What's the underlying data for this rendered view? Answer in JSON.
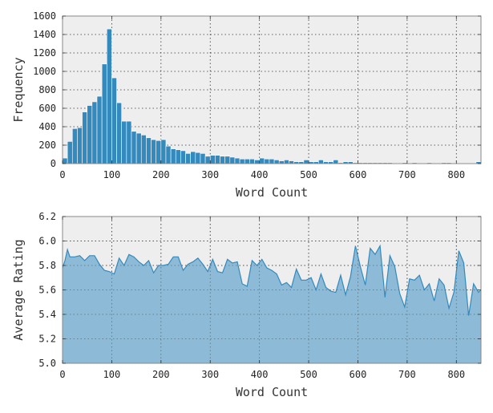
{
  "colors": {
    "bar": "#348ABD",
    "line": "#348ABD",
    "area": "#8DBAD6",
    "plot_bg": "#EEEEEE"
  },
  "chart_data": [
    {
      "type": "bar",
      "xlabel": "Word Count",
      "ylabel": "Frequency",
      "xlim": [
        0,
        850
      ],
      "ylim": [
        0,
        1600
      ],
      "xticks": [
        0,
        100,
        200,
        300,
        400,
        500,
        600,
        700,
        800
      ],
      "yticks": [
        0,
        200,
        400,
        600,
        800,
        1000,
        1200,
        1400,
        1600
      ],
      "grid": true,
      "bin_width": 10,
      "x": [
        5,
        15,
        25,
        35,
        45,
        55,
        65,
        75,
        85,
        95,
        105,
        115,
        125,
        135,
        145,
        155,
        165,
        175,
        185,
        195,
        205,
        215,
        225,
        235,
        245,
        255,
        265,
        275,
        285,
        295,
        305,
        315,
        325,
        335,
        345,
        355,
        365,
        375,
        385,
        395,
        405,
        415,
        425,
        435,
        445,
        455,
        465,
        475,
        485,
        495,
        505,
        515,
        525,
        535,
        545,
        555,
        565,
        575,
        585,
        595,
        605,
        615,
        625,
        635,
        645,
        655,
        665,
        675,
        685,
        695,
        705,
        715,
        725,
        735,
        745,
        755,
        765,
        775,
        785,
        795,
        805,
        815,
        825,
        835,
        845
      ],
      "values": [
        60,
        240,
        380,
        390,
        560,
        630,
        670,
        730,
        1080,
        1460,
        930,
        660,
        460,
        460,
        350,
        330,
        310,
        280,
        260,
        250,
        260,
        190,
        160,
        150,
        140,
        110,
        130,
        120,
        110,
        80,
        90,
        90,
        80,
        80,
        70,
        60,
        50,
        50,
        50,
        40,
        60,
        50,
        50,
        40,
        30,
        40,
        30,
        20,
        20,
        40,
        20,
        20,
        40,
        20,
        20,
        40,
        10,
        20,
        20,
        10,
        10,
        10,
        10,
        10,
        10,
        10,
        10,
        5,
        5,
        10,
        5,
        10,
        5,
        5,
        10,
        5,
        5,
        10,
        10,
        5,
        5,
        5,
        5,
        5,
        20
      ]
    },
    {
      "type": "area",
      "xlabel": "Word Count",
      "ylabel": "Average Rating",
      "xlim": [
        0,
        850
      ],
      "ylim": [
        5.0,
        6.2
      ],
      "xticks": [
        0,
        100,
        200,
        300,
        400,
        500,
        600,
        700,
        800
      ],
      "yticks": [
        5.0,
        5.2,
        5.4,
        5.6,
        5.8,
        6.0,
        6.2
      ],
      "ytick_labels": [
        "5.0",
        "5.2",
        "5.4",
        "5.6",
        "5.8",
        "6.0",
        "6.2"
      ],
      "grid": true,
      "x": [
        0,
        5,
        10,
        15,
        25,
        35,
        45,
        55,
        65,
        75,
        85,
        95,
        105,
        115,
        125,
        135,
        145,
        155,
        165,
        175,
        185,
        195,
        205,
        215,
        225,
        235,
        245,
        255,
        265,
        275,
        285,
        295,
        305,
        315,
        325,
        335,
        345,
        355,
        365,
        375,
        385,
        395,
        405,
        415,
        425,
        435,
        445,
        455,
        465,
        475,
        485,
        495,
        505,
        515,
        525,
        535,
        545,
        555,
        565,
        575,
        585,
        595,
        605,
        615,
        625,
        635,
        645,
        655,
        665,
        675,
        685,
        695,
        705,
        715,
        725,
        735,
        745,
        755,
        765,
        775,
        785,
        795,
        805,
        815,
        825,
        835,
        845,
        850
      ],
      "values": [
        5.78,
        5.84,
        5.93,
        5.87,
        5.87,
        5.88,
        5.84,
        5.88,
        5.88,
        5.81,
        5.76,
        5.75,
        5.73,
        5.86,
        5.8,
        5.89,
        5.87,
        5.83,
        5.8,
        5.84,
        5.74,
        5.8,
        5.8,
        5.81,
        5.87,
        5.87,
        5.76,
        5.81,
        5.83,
        5.86,
        5.81,
        5.75,
        5.85,
        5.75,
        5.74,
        5.85,
        5.82,
        5.83,
        5.65,
        5.63,
        5.84,
        5.8,
        5.85,
        5.78,
        5.76,
        5.73,
        5.64,
        5.66,
        5.62,
        5.77,
        5.68,
        5.68,
        5.7,
        5.6,
        5.73,
        5.62,
        5.59,
        5.58,
        5.72,
        5.56,
        5.71,
        5.96,
        5.79,
        5.64,
        5.94,
        5.89,
        5.96,
        5.54,
        5.88,
        5.79,
        5.57,
        5.46,
        5.69,
        5.68,
        5.72,
        5.6,
        5.65,
        5.51,
        5.69,
        5.64,
        5.45,
        5.58,
        5.92,
        5.82,
        5.39,
        5.65,
        5.58,
        5.6
      ]
    }
  ]
}
